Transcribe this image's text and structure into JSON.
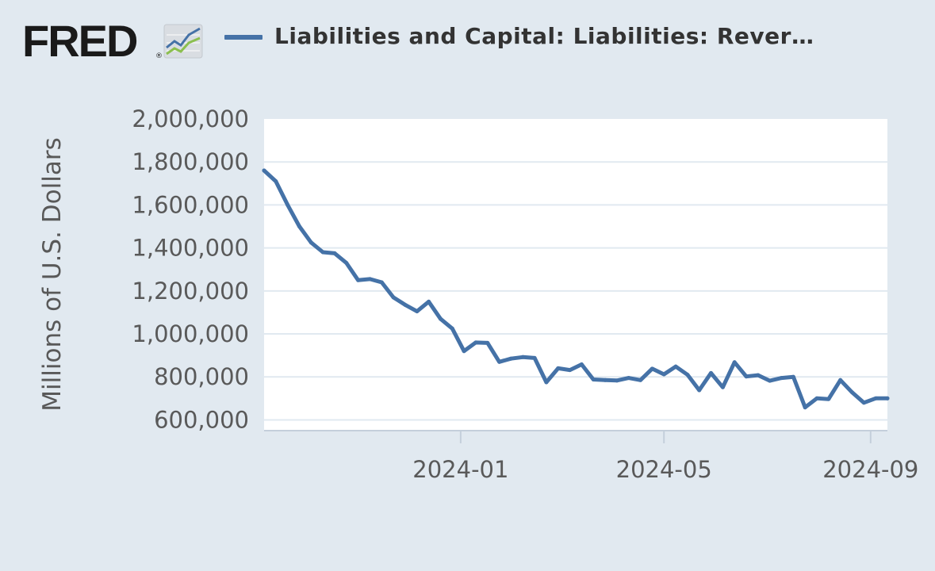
{
  "logo": {
    "text": "FRED",
    "reg": "®",
    "icon": "fred-trend-icon"
  },
  "legend": {
    "label": "Liabilities and Capital: Liabilities: Rever…",
    "color": "#4572a7"
  },
  "colors": {
    "background": "#e1e9f0",
    "plot_background": "#ffffff",
    "grid": "#e1e9f0",
    "line": "#4572a7"
  },
  "chart_data": {
    "type": "line",
    "title": "",
    "xlabel": "",
    "ylabel": "Millions of U.S. Dollars",
    "ylim": [
      550000,
      2000000
    ],
    "yticks": [
      600000,
      800000,
      1000000,
      1200000,
      1400000,
      1600000,
      1800000,
      2000000
    ],
    "ytick_labels": [
      "600,000",
      "800,000",
      "1,000,000",
      "1,200,000",
      "1,400,000",
      "1,600,000",
      "1,800,000",
      "2,000,000"
    ],
    "xlim": [
      "2023-09-06",
      "2024-09-11"
    ],
    "xticks": [
      "2024-01-01",
      "2024-05-01",
      "2024-09-01"
    ],
    "xtick_labels": [
      "2024-01",
      "2024-05",
      "2024-09"
    ],
    "grid": true,
    "legend_position": "top",
    "series": [
      {
        "name": "Liabilities and Capital: Liabilities: Rever…",
        "x": [
          "2023-09-06",
          "2023-09-13",
          "2023-09-20",
          "2023-09-27",
          "2023-10-04",
          "2023-10-11",
          "2023-10-18",
          "2023-10-25",
          "2023-11-01",
          "2023-11-08",
          "2023-11-15",
          "2023-11-22",
          "2023-11-29",
          "2023-12-06",
          "2023-12-13",
          "2023-12-20",
          "2023-12-27",
          "2024-01-03",
          "2024-01-10",
          "2024-01-17",
          "2024-01-24",
          "2024-01-31",
          "2024-02-07",
          "2024-02-14",
          "2024-02-21",
          "2024-02-28",
          "2024-03-06",
          "2024-03-13",
          "2024-03-20",
          "2024-03-27",
          "2024-04-03",
          "2024-04-10",
          "2024-04-17",
          "2024-04-24",
          "2024-05-01",
          "2024-05-08",
          "2024-05-15",
          "2024-05-22",
          "2024-05-29",
          "2024-06-05",
          "2024-06-12",
          "2024-06-19",
          "2024-06-26",
          "2024-07-03",
          "2024-07-10",
          "2024-07-17",
          "2024-07-24",
          "2024-07-31",
          "2024-08-07",
          "2024-08-14",
          "2024-08-21",
          "2024-08-28",
          "2024-09-04",
          "2024-09-11"
        ],
        "values": [
          1760000,
          1710000,
          1600000,
          1500000,
          1425000,
          1380000,
          1375000,
          1330000,
          1250000,
          1255000,
          1240000,
          1170000,
          1135000,
          1105000,
          1150000,
          1070000,
          1025000,
          920000,
          960000,
          958000,
          870000,
          885000,
          892000,
          888000,
          775000,
          840000,
          832000,
          858000,
          788000,
          785000,
          783000,
          795000,
          785000,
          838000,
          812000,
          848000,
          810000,
          738000,
          818000,
          752000,
          868000,
          802000,
          808000,
          782000,
          795000,
          800000,
          658000,
          700000,
          697000,
          785000,
          728000,
          680000,
          700000,
          700000
        ]
      }
    ]
  }
}
